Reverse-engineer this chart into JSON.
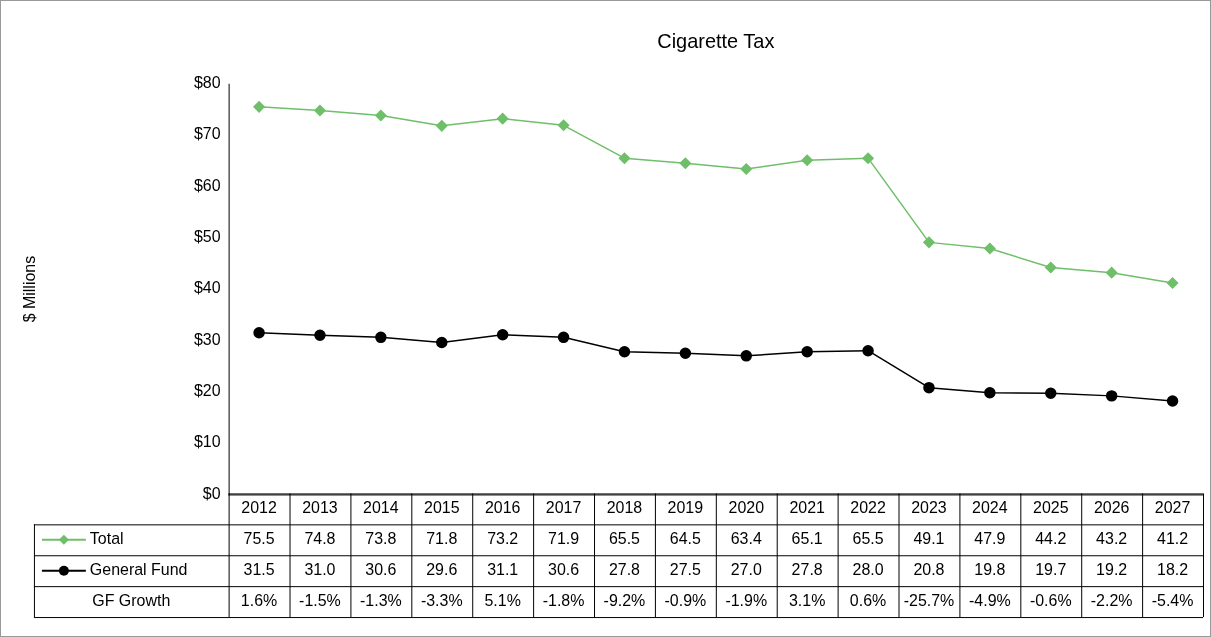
{
  "chart_data": {
    "type": "line",
    "title": "Cigarette Tax",
    "annotations": [
      "$ Millions"
    ],
    "categories": [
      "2012",
      "2013",
      "2014",
      "2015",
      "2016",
      "2017",
      "2018",
      "2019",
      "2020",
      "2021",
      "2022",
      "2023",
      "2024",
      "2025",
      "2026",
      "2027"
    ],
    "series": [
      {
        "name": "Total",
        "color": "#6fbf6a",
        "marker": "diamond",
        "values": [
          75.5,
          74.8,
          73.8,
          71.8,
          73.2,
          71.9,
          65.5,
          64.5,
          63.4,
          65.1,
          65.5,
          49.1,
          47.9,
          44.2,
          43.2,
          41.2
        ],
        "value_labels": [
          "75.5",
          "74.8",
          "73.8",
          "71.8",
          "73.2",
          "71.9",
          "65.5",
          "64.5",
          "63.4",
          "65.1",
          "65.5",
          "49.1",
          "47.9",
          "44.2",
          "43.2",
          "41.2"
        ]
      },
      {
        "name": "General Fund",
        "color": "#000000",
        "marker": "circle",
        "values": [
          31.5,
          31.0,
          30.6,
          29.6,
          31.1,
          30.6,
          27.8,
          27.5,
          27.0,
          27.8,
          28.0,
          20.8,
          19.8,
          19.7,
          19.2,
          18.2
        ],
        "value_labels": [
          "31.5",
          "31.0",
          "30.6",
          "29.6",
          "31.1",
          "30.6",
          "27.8",
          "27.5",
          "27.0",
          "27.8",
          "28.0",
          "20.8",
          "19.8",
          "19.7",
          "19.2",
          "18.2"
        ]
      },
      {
        "name": "GF Growth",
        "values": [
          null,
          null,
          null,
          null,
          null,
          null,
          null,
          null,
          null,
          null,
          null,
          null,
          null,
          null,
          null,
          null
        ],
        "value_labels": [
          "1.6%",
          "-1.5%",
          "-1.3%",
          "-3.3%",
          "5.1%",
          "-1.8%",
          "-9.2%",
          "-0.9%",
          "-1.9%",
          "3.1%",
          "0.6%",
          "-25.7%",
          "-4.9%",
          "-0.6%",
          "-2.2%",
          "-5.4%"
        ]
      }
    ],
    "ylim": [
      0,
      80
    ],
    "yticks": [
      {
        "value": 0,
        "label": "$0"
      },
      {
        "value": 10,
        "label": "$10"
      },
      {
        "value": 20,
        "label": "$20"
      },
      {
        "value": 30,
        "label": "$30"
      },
      {
        "value": 40,
        "label": "$40"
      },
      {
        "value": 50,
        "label": "$50"
      },
      {
        "value": 60,
        "label": "$60"
      },
      {
        "value": 70,
        "label": "$70"
      },
      {
        "value": 80,
        "label": "$80"
      }
    ],
    "grid": false,
    "legend": "bottom",
    "line_style": "solid"
  }
}
